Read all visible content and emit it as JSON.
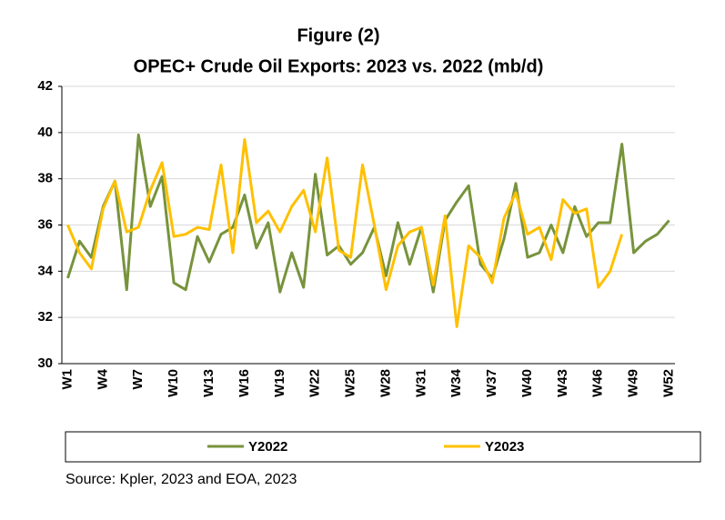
{
  "chart_data": {
    "type": "line",
    "title": "Figure (2)",
    "subtitle": "OPEC+ Crude Oil Exports: 2023 vs. 2022 (mb/d)",
    "source": "Source: Kpler, 2023 and EOA, 2023",
    "categories": [
      "W1",
      null,
      null,
      "W4",
      null,
      null,
      "W7",
      null,
      null,
      "W10",
      null,
      null,
      "W13",
      null,
      null,
      "W16",
      null,
      null,
      "W19",
      null,
      null,
      "W22",
      null,
      null,
      "W25",
      null,
      null,
      "W28",
      null,
      null,
      "W31",
      null,
      null,
      "W34",
      null,
      null,
      "W37",
      null,
      null,
      "W40",
      null,
      null,
      "W43",
      null,
      null,
      "W46",
      null,
      null,
      "W49",
      null,
      null,
      "W52"
    ],
    "series": [
      {
        "name": "Y2022",
        "color": "#77933c",
        "values": [
          33.7,
          35.3,
          34.6,
          36.8,
          37.9,
          33.2,
          39.9,
          36.8,
          38.1,
          33.5,
          33.2,
          35.5,
          34.4,
          35.6,
          35.9,
          37.3,
          35.0,
          36.1,
          33.1,
          34.8,
          33.3,
          38.2,
          34.7,
          35.1,
          34.3,
          34.8,
          35.9,
          33.8,
          36.1,
          34.3,
          35.9,
          33.1,
          36.2,
          37.0,
          37.7,
          34.3,
          33.7,
          35.4,
          37.8,
          34.6,
          34.8,
          36.0,
          34.8,
          36.8,
          35.5,
          36.1,
          36.1,
          39.5,
          34.8,
          35.3,
          35.6,
          36.2
        ]
      },
      {
        "name": "Y2023",
        "color": "#ffc000",
        "values": [
          36.0,
          34.8,
          34.1,
          36.7,
          37.9,
          35.7,
          35.9,
          37.5,
          38.7,
          35.5,
          35.6,
          35.9,
          35.8,
          38.6,
          34.8,
          39.7,
          36.1,
          36.6,
          35.7,
          36.8,
          37.5,
          35.7,
          38.9,
          34.9,
          34.6,
          38.6,
          36.0,
          33.2,
          35.1,
          35.7,
          35.9,
          33.4,
          36.4,
          31.6,
          35.1,
          34.6,
          33.5,
          36.3,
          37.4,
          35.6,
          35.9,
          34.5,
          37.1,
          36.5,
          36.7,
          33.3,
          34.0,
          35.6,
          null,
          null,
          null,
          null
        ]
      }
    ],
    "ylim": [
      30,
      42
    ],
    "yticks": [
      30,
      32,
      34,
      36,
      38,
      40,
      42
    ],
    "grid": true,
    "legend": "bottom"
  }
}
